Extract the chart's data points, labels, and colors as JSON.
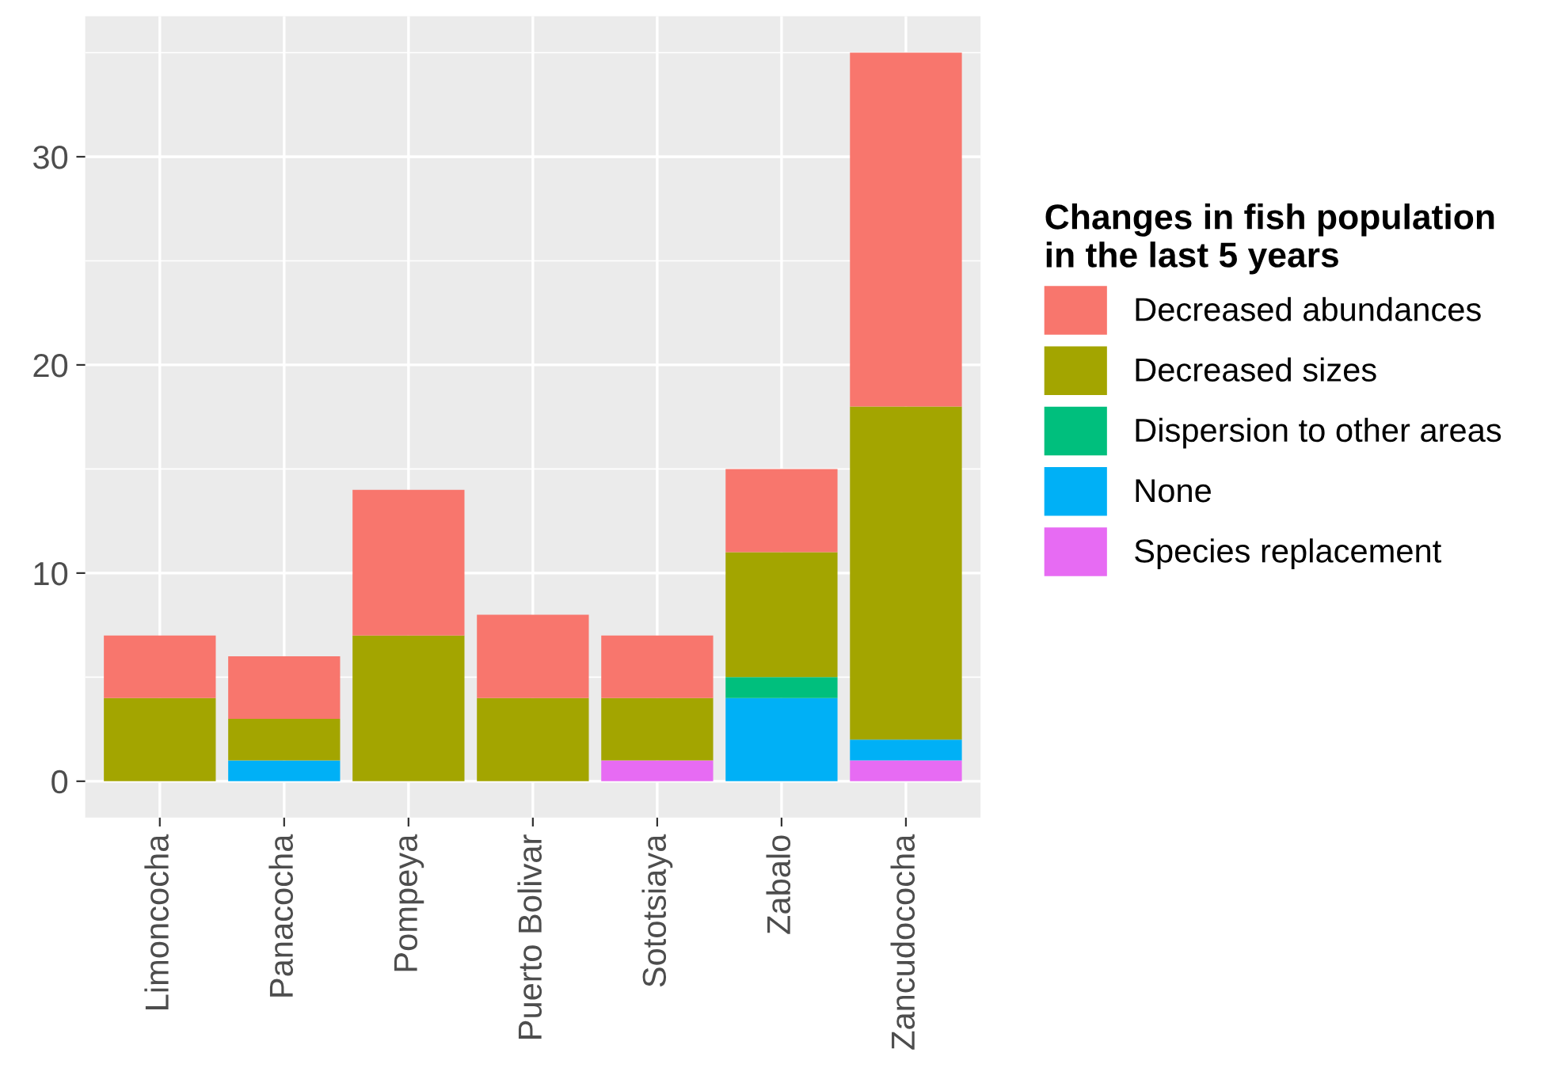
{
  "chart_data": {
    "type": "bar",
    "stacked": true,
    "legend_title": "Changes in fish population\nin the last 5 years",
    "categories": [
      "Limoncocha",
      "Panacocha",
      "Pompeya",
      "Puerto Bolivar",
      "Sototsiaya",
      "Zabalo",
      "Zancudococha"
    ],
    "series": [
      {
        "name": "Species replacement",
        "color": "#e76bf3",
        "values": [
          0,
          0,
          0,
          0,
          1,
          0,
          1
        ]
      },
      {
        "name": "None",
        "color": "#00b0f6",
        "values": [
          0,
          1,
          0,
          0,
          0,
          4,
          1
        ]
      },
      {
        "name": "Dispersion to other areas",
        "color": "#00bf7d",
        "values": [
          0,
          0,
          0,
          0,
          0,
          1,
          0
        ]
      },
      {
        "name": "Decreased sizes",
        "color": "#a3a500",
        "values": [
          4,
          2,
          7,
          4,
          3,
          6,
          16
        ]
      },
      {
        "name": "Decreased abundances",
        "color": "#f8766d",
        "values": [
          3,
          3,
          7,
          4,
          3,
          4,
          17
        ]
      }
    ],
    "ylim": [
      -1.75,
      36.75
    ],
    "yticks": [
      0,
      10,
      20,
      30
    ],
    "grid": true,
    "legend": "right"
  }
}
